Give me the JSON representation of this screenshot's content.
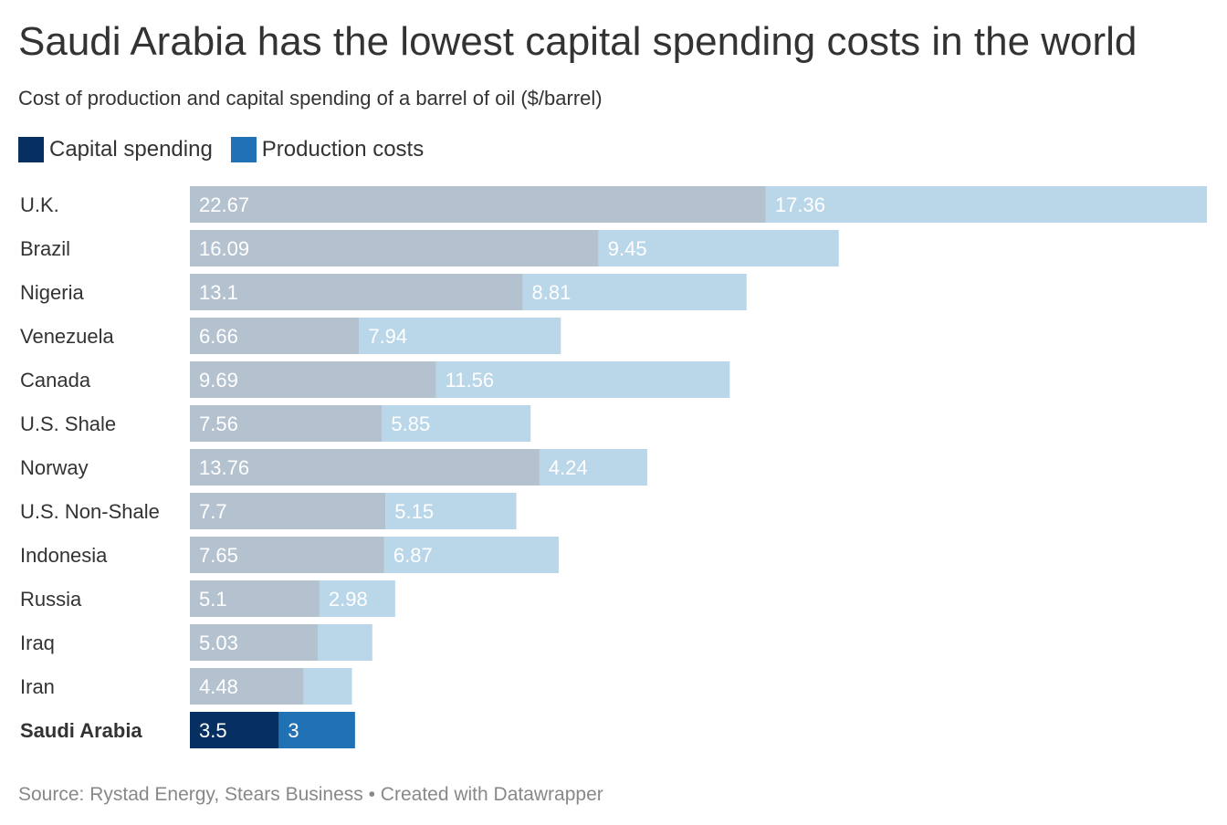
{
  "header": {
    "title": "Saudi Arabia has the lowest capital spending costs in the world",
    "subtitle": "Cost of production and capital spending of a barrel of oil ($/barrel)"
  },
  "legend": {
    "items": [
      {
        "label": "Capital spending",
        "color": "#053061"
      },
      {
        "label": "Production costs",
        "color": "#2171b5"
      }
    ]
  },
  "footer": {
    "source": "Source: Rystad Energy, Stears Business • Created with Datawrapper"
  },
  "colors": {
    "capital_highlight": "#053061",
    "production_highlight": "#2171b5",
    "capital_muted": "#b4c2d0",
    "production_muted": "#bad6e9"
  },
  "chart_data": {
    "type": "bar",
    "orientation": "horizontal",
    "stacked": true,
    "categories": [
      "U.K.",
      "Brazil",
      "Nigeria",
      "Venezuela",
      "Canada",
      "U.S. Shale",
      "Norway",
      "U.S. Non-Shale",
      "Indonesia",
      "Russia",
      "Iraq",
      "Iran",
      "Saudi Arabia"
    ],
    "series": [
      {
        "name": "Capital spending",
        "values": [
          22.67,
          16.09,
          13.1,
          6.66,
          9.69,
          7.56,
          13.76,
          7.7,
          7.65,
          5.1,
          5.03,
          4.48,
          3.5
        ],
        "labels": [
          "22.67",
          "16.09",
          "13.1",
          "6.66",
          "9.69",
          "7.56",
          "13.76",
          "7.7",
          "7.65",
          "5.1",
          "5.03",
          "4.48",
          "3.5"
        ]
      },
      {
        "name": "Production costs",
        "values": [
          17.36,
          9.45,
          8.81,
          7.94,
          11.56,
          5.85,
          4.24,
          5.15,
          6.87,
          2.98,
          2.15,
          1.9,
          3
        ],
        "labels": [
          "17.36",
          "9.45",
          "8.81",
          "7.94",
          "11.56",
          "5.85",
          "4.24",
          "5.15",
          "6.87",
          "2.98",
          "",
          "",
          "3"
        ]
      }
    ],
    "highlight": "Saudi Arabia",
    "xlim": [
      0,
      40.03
    ],
    "grid": false,
    "legend_position": "top-left"
  }
}
